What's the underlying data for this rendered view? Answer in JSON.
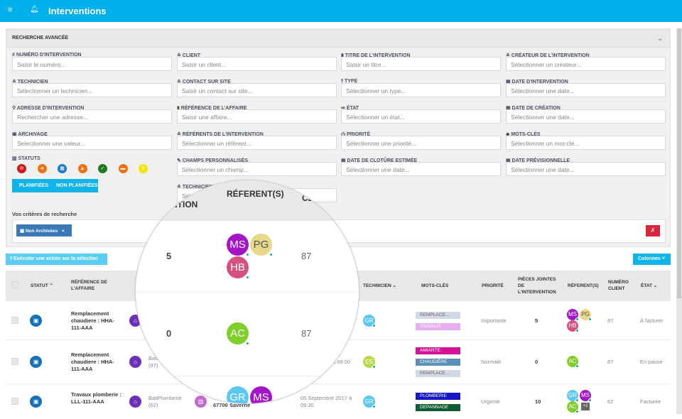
{
  "topbar": {
    "title": "Interventions",
    "menu_icon": "menu-icon",
    "bell_icon": "bell-icon",
    "bg": "#00b0ea"
  },
  "search": {
    "title": "RECHERCHE AVANCÉE",
    "fields": [
      {
        "label": "# NUMÉRO D'INTERVENTION",
        "placeholder": "Saisir le numéro..."
      },
      {
        "label": "≗ CLIENT",
        "placeholder": "Saisir un client..."
      },
      {
        "label": "▮ TITRE DE L'INTERVENTION",
        "placeholder": "Saisir un titre..."
      },
      {
        "label": "≗ CRÉATEUR DE L'INTERVENTION",
        "placeholder": "Sélectionner un créateur..."
      },
      {
        "label": "≗ TECHNICIEN",
        "placeholder": "Sélectionner un technicien..."
      },
      {
        "label": "≗ CONTACT SUR SITE",
        "placeholder": "Saisir un contact sur site..."
      },
      {
        "label": "⫯ TYPE",
        "placeholder": "Sélectionner un type..."
      },
      {
        "label": "▦ DATE D'INTERVENTION",
        "placeholder": "Sélectionner une date..."
      },
      {
        "label": "⚲ ADRESSE D'INTERVENTION",
        "placeholder": "Rechercher une adresse..."
      },
      {
        "label": "▮ RÉFÉRENCE DE L'AFFAIRE",
        "placeholder": "Saisir une affaire..."
      },
      {
        "label": "⇛ ÉTAT",
        "placeholder": "Sélectionner un état..."
      },
      {
        "label": "▦ DATE DE CRÉATION",
        "placeholder": "Sélectionner une date..."
      },
      {
        "label": "▣ ARCHIVAGE",
        "placeholder": "Selectionner une valeur..."
      },
      {
        "label": "≗ RÉFÉRENTS DE L'INTERVENTION",
        "placeholder": "Sélectionner un référent..."
      },
      {
        "label": "◷ PRIORITÉ",
        "placeholder": "Sélectionner une priorité..."
      },
      {
        "label": "◆ MOTS-CLÉS",
        "placeholder": "Sélectionner un mot-clé..."
      },
      null,
      {
        "label": "✎ CHAMPS PERSONNALISÉS",
        "placeholder": "Sélectionner un champ..."
      },
      {
        "label": "▦ DATE DE CLOTÛRE ESTIMÉE",
        "placeholder": "Sélectionner une date..."
      },
      {
        "label": "▦ DATE PRÉVISIONNELLE",
        "placeholder": "Sélectionner une date..."
      },
      null,
      {
        "label": "≗ TECHNICIEN",
        "placeholder": "Sél"
      }
    ],
    "statuts_label": "▥ STATUTS",
    "statuts": [
      {
        "color": "#cc1a1a",
        "icon": "⊖"
      },
      {
        "color": "#f0720f",
        "icon": "➜"
      },
      {
        "color": "#1a7ac4",
        "icon": "▦"
      },
      {
        "color": "#f07010",
        "icon": "▲"
      },
      {
        "color": "#1f7a1f",
        "icon": "✓"
      },
      {
        "color": "#f07010",
        "icon": "▬"
      },
      {
        "color": "#f2e600",
        "icon": "Ⅱ"
      }
    ],
    "planned": "PLANIFIÉES",
    "unplanned": "NON PLANIFIÉES",
    "criteria_label": "Vos critères de recherche",
    "criteria_tag": "▣ Non Archivées",
    "criteria_tag_close": "×"
  },
  "actions": {
    "execute": "⫯ Exécuter une action sur la sélection",
    "columns": "Colonnes ˅"
  },
  "table": {
    "headers": {
      "statut": "STATUT ⌃",
      "ref": "RÉFÉRENCE DE L'AFFAIRE",
      "technicien": "TECHNICIEN ⌄",
      "mots": "MOTS-CLÉS",
      "priorite": "PRIORITÉ",
      "pieces": "PIÈCES JOINTES DE L'INTERVENTION",
      "referents": "RÉFERENT(S)",
      "numero": "NUMÉRO CLIENT",
      "etat": "ÉTAT ⌄"
    },
    "rows": [
      {
        "ref": "Remplacement chaudiere : HHA-111-AAA",
        "client": "",
        "client_num": "",
        "address1": "",
        "address2": "",
        "date": "",
        "tech": {
          "initials": "GR",
          "color": "#5bc8f2"
        },
        "tags": [
          {
            "t": "REMPLACE...",
            "c": "#d3d8e6",
            "f": "#666"
          },
          {
            "t": "TRAVAUX",
            "c": "#e6aef0",
            "f": "#fff"
          }
        ],
        "priorite": "Importante",
        "pieces": "5",
        "referents": [
          {
            "i": "MS",
            "c": "#a514c9"
          },
          {
            "i": "PG",
            "c": "#e8d98a"
          },
          {
            "i": "HB",
            "c": "#d6517f"
          }
        ],
        "extra": "",
        "numero": "87",
        "etat": "À facturer"
      },
      {
        "ref": "Remplacement chaudiere : HHA-111-AAA",
        "client": "BatiC",
        "client_num": "(87)",
        "address1": "",
        "address2": "",
        "date": "à 09:00",
        "tech": {
          "initials": "ES",
          "color": "#b8d94a"
        },
        "tags": [
          {
            "t": "AMIANTE",
            "c": "#d6119a",
            "f": "#fff"
          },
          {
            "t": "CHAUDIÈRE",
            "c": "#5a8fb8",
            "f": "#fff"
          },
          {
            "t": "REMPLACE...",
            "c": "#d3d8e6",
            "f": "#666"
          }
        ],
        "priorite": "Normale",
        "pieces": "0",
        "referents": [
          {
            "i": "AC",
            "c": "#7fcf2a"
          }
        ],
        "extra": "",
        "numero": "87",
        "etat": "En pause"
      },
      {
        "ref": "Travaux plomberie : LLL-111-AAA",
        "client": "BatiPlomberie",
        "client_num": "(62)",
        "address1": "7 Rue Sa",
        "address2": "67700 Saverne",
        "date": "05 Septembre 2017 à 09:30",
        "tech": {
          "initials": "GR",
          "color": "#5bc8f2"
        },
        "tags": [
          {
            "t": "PLOMBERIE",
            "c": "#1616c8",
            "f": "#fff"
          },
          {
            "t": "DEPANNAGE",
            "c": "#0e5c32",
            "f": "#fff"
          }
        ],
        "priorite": "Urgente",
        "pieces": "10",
        "referents": [
          {
            "i": "GR",
            "c": "#5bc8f2"
          },
          {
            "i": "MS",
            "c": "#a514c9"
          },
          {
            "i": "AC",
            "c": "#7fcf2a"
          }
        ],
        "extra": "+1",
        "numero": "62",
        "etat": "Facturée"
      }
    ]
  },
  "magnifier": {
    "h_pieces": "ENTION",
    "h_referents": "RÉFERENT(S)",
    "h_client": "CL",
    "rows": [
      {
        "pieces": "5",
        "numero": "87"
      },
      {
        "pieces": "0",
        "numero": "87"
      }
    ]
  }
}
